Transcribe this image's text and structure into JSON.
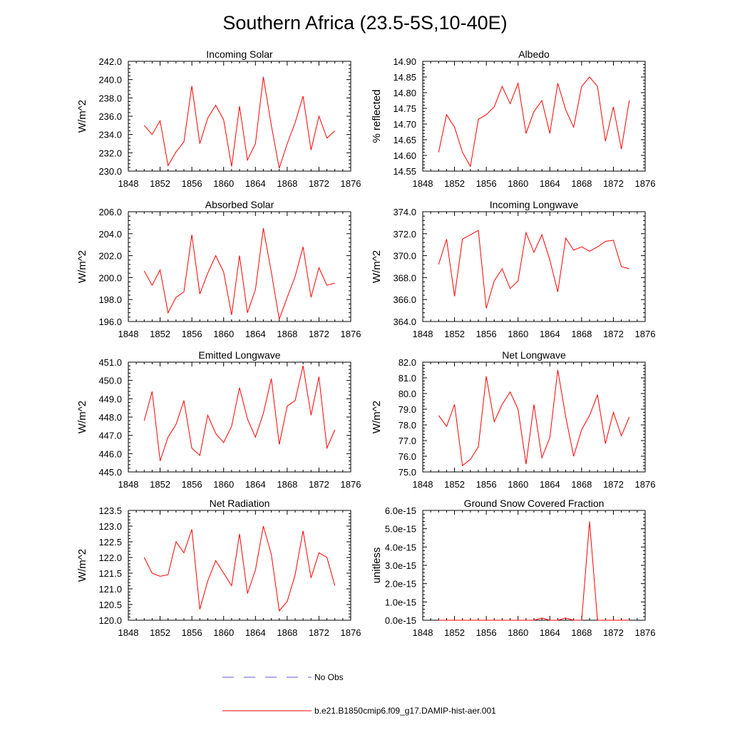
{
  "figure": {
    "title": "Southern Africa (23.5-5S,10-40E)",
    "series_color": "#ff0000",
    "obs_color": "#5b5bd6",
    "legend": {
      "obs_label": "No Obs",
      "model_label": "b.e21.B1850cmip6.f09_g17.DAMIP-hist-aer.001"
    }
  },
  "chart_data": [
    {
      "type": "line",
      "title": "Incoming Solar",
      "ylabel": "W/m^2",
      "xlim": [
        1848,
        1876
      ],
      "ylim": [
        230,
        242
      ],
      "xticks": [
        "1848",
        "1852",
        "1856",
        "1860",
        "1864",
        "1868",
        "1872",
        "1876"
      ],
      "yticks": [
        "230.0",
        "232.0",
        "234.0",
        "236.0",
        "238.0",
        "240.0",
        "242.0"
      ],
      "series": [
        {
          "x": [
            1850,
            1851,
            1852,
            1853,
            1854,
            1855,
            1856,
            1857,
            1858,
            1859,
            1860,
            1861,
            1862,
            1863,
            1864,
            1865,
            1866,
            1867,
            1868,
            1869,
            1870,
            1871,
            1872,
            1873,
            1874
          ],
          "values": [
            235.0,
            234.0,
            235.5,
            230.6,
            232.1,
            233.2,
            239.3,
            233.0,
            235.8,
            237.2,
            235.6,
            230.5,
            237.1,
            231.2,
            233.0,
            240.3,
            235.0,
            230.3,
            233.0,
            235.3,
            238.2,
            232.3,
            236.0,
            233.6,
            234.4
          ]
        }
      ]
    },
    {
      "type": "line",
      "title": "Albedo",
      "ylabel": "% reflected",
      "xlim": [
        1848,
        1876
      ],
      "ylim": [
        14.55,
        14.9
      ],
      "xticks": [
        "1848",
        "1852",
        "1856",
        "1860",
        "1864",
        "1868",
        "1872",
        "1876"
      ],
      "yticks": [
        "14.55",
        "14.60",
        "14.65",
        "14.70",
        "14.75",
        "14.80",
        "14.85",
        "14.90"
      ],
      "series": [
        {
          "x": [
            1850,
            1851,
            1852,
            1853,
            1854,
            1855,
            1856,
            1857,
            1858,
            1859,
            1860,
            1861,
            1862,
            1863,
            1864,
            1865,
            1866,
            1867,
            1868,
            1869,
            1870,
            1871,
            1872,
            1873,
            1874
          ],
          "values": [
            14.61,
            14.73,
            14.69,
            14.61,
            14.565,
            14.715,
            14.73,
            14.755,
            14.82,
            14.765,
            14.83,
            14.67,
            14.74,
            14.775,
            14.67,
            14.83,
            14.745,
            14.69,
            14.82,
            14.85,
            14.82,
            14.645,
            14.755,
            14.62,
            14.775
          ]
        }
      ]
    },
    {
      "type": "line",
      "title": "Absorbed Solar",
      "ylabel": "W/m^2",
      "xlim": [
        1848,
        1876
      ],
      "ylim": [
        196,
        206
      ],
      "xticks": [
        "1848",
        "1852",
        "1856",
        "1860",
        "1864",
        "1868",
        "1872",
        "1876"
      ],
      "yticks": [
        "196.0",
        "198.0",
        "200.0",
        "202.0",
        "204.0",
        "206.0"
      ],
      "series": [
        {
          "x": [
            1850,
            1851,
            1852,
            1853,
            1854,
            1855,
            1856,
            1857,
            1858,
            1859,
            1860,
            1861,
            1862,
            1863,
            1864,
            1865,
            1866,
            1867,
            1868,
            1869,
            1870,
            1871,
            1872,
            1873,
            1874
          ],
          "values": [
            200.6,
            199.3,
            200.7,
            196.8,
            198.2,
            198.7,
            203.9,
            198.5,
            200.4,
            202.0,
            200.5,
            196.6,
            202.0,
            196.8,
            198.9,
            204.5,
            200.5,
            196.2,
            198.2,
            200.1,
            202.8,
            198.2,
            200.9,
            199.3,
            199.5
          ]
        }
      ]
    },
    {
      "type": "line",
      "title": "Incoming Longwave",
      "ylabel": "W/m^2",
      "xlim": [
        1848,
        1876
      ],
      "ylim": [
        364,
        374
      ],
      "xticks": [
        "1848",
        "1852",
        "1856",
        "1860",
        "1864",
        "1868",
        "1872",
        "1876"
      ],
      "yticks": [
        "364.0",
        "366.0",
        "368.0",
        "370.0",
        "372.0",
        "374.0"
      ],
      "series": [
        {
          "x": [
            1850,
            1851,
            1852,
            1853,
            1854,
            1855,
            1856,
            1857,
            1858,
            1859,
            1860,
            1861,
            1862,
            1863,
            1864,
            1865,
            1866,
            1867,
            1868,
            1869,
            1870,
            1871,
            1872,
            1873,
            1874
          ],
          "values": [
            369.2,
            371.5,
            366.3,
            371.5,
            371.9,
            372.3,
            365.2,
            367.7,
            368.8,
            367.0,
            367.7,
            372.1,
            370.3,
            371.9,
            369.6,
            366.7,
            371.6,
            370.5,
            370.8,
            370.4,
            370.8,
            371.3,
            371.4,
            369.0,
            368.8
          ]
        }
      ]
    },
    {
      "type": "line",
      "title": "Emitted Longwave",
      "ylabel": "W/m^2",
      "xlim": [
        1848,
        1876
      ],
      "ylim": [
        445,
        451
      ],
      "xticks": [
        "1848",
        "1852",
        "1856",
        "1860",
        "1864",
        "1868",
        "1872",
        "1876"
      ],
      "yticks": [
        "445.0",
        "446.0",
        "447.0",
        "448.0",
        "449.0",
        "450.0",
        "451.0"
      ],
      "series": [
        {
          "x": [
            1850,
            1851,
            1852,
            1853,
            1854,
            1855,
            1856,
            1857,
            1858,
            1859,
            1860,
            1861,
            1862,
            1863,
            1864,
            1865,
            1866,
            1867,
            1868,
            1869,
            1870,
            1871,
            1872,
            1873,
            1874
          ],
          "values": [
            447.8,
            449.4,
            445.6,
            446.9,
            447.6,
            448.9,
            446.3,
            445.9,
            448.1,
            447.1,
            446.6,
            447.5,
            449.6,
            447.9,
            446.9,
            448.2,
            450.1,
            446.5,
            448.6,
            448.9,
            450.8,
            448.1,
            450.2,
            446.3,
            447.3
          ]
        }
      ]
    },
    {
      "type": "line",
      "title": "Net Longwave",
      "ylabel": "W/m^2",
      "xlim": [
        1848,
        1876
      ],
      "ylim": [
        75,
        82
      ],
      "xticks": [
        "1848",
        "1852",
        "1856",
        "1860",
        "1864",
        "1868",
        "1872",
        "1876"
      ],
      "yticks": [
        "75.0",
        "76.0",
        "77.0",
        "78.0",
        "79.0",
        "80.0",
        "81.0",
        "82.0"
      ],
      "series": [
        {
          "x": [
            1850,
            1851,
            1852,
            1853,
            1854,
            1855,
            1856,
            1857,
            1858,
            1859,
            1860,
            1861,
            1862,
            1863,
            1864,
            1865,
            1866,
            1867,
            1868,
            1869,
            1870,
            1871,
            1872,
            1873,
            1874
          ],
          "values": [
            78.6,
            77.9,
            79.3,
            75.4,
            75.8,
            76.6,
            81.1,
            78.2,
            79.3,
            80.1,
            79.0,
            75.5,
            79.3,
            75.9,
            77.2,
            81.5,
            78.5,
            76.0,
            77.7,
            78.6,
            79.9,
            76.8,
            78.8,
            77.3,
            78.5
          ]
        }
      ]
    },
    {
      "type": "line",
      "title": "Net Radiation",
      "ylabel": "W/m^2",
      "xlim": [
        1848,
        1876
      ],
      "ylim": [
        120,
        123.5
      ],
      "xticks": [
        "1848",
        "1852",
        "1856",
        "1860",
        "1864",
        "1868",
        "1872",
        "1876"
      ],
      "yticks": [
        "120.0",
        "120.5",
        "121.0",
        "121.5",
        "122.0",
        "122.5",
        "123.0",
        "123.5"
      ],
      "series": [
        {
          "x": [
            1850,
            1851,
            1852,
            1853,
            1854,
            1855,
            1856,
            1857,
            1858,
            1859,
            1860,
            1861,
            1862,
            1863,
            1864,
            1865,
            1866,
            1867,
            1868,
            1869,
            1870,
            1871,
            1872,
            1873,
            1874
          ],
          "values": [
            122.0,
            121.5,
            121.4,
            121.45,
            122.5,
            122.15,
            122.9,
            120.35,
            121.25,
            121.9,
            121.5,
            121.1,
            122.75,
            120.85,
            121.6,
            123.0,
            122.1,
            120.3,
            120.6,
            121.45,
            122.85,
            121.35,
            122.15,
            122.0,
            121.1
          ]
        }
      ]
    },
    {
      "type": "line",
      "title": "Ground Snow Covered Fraction",
      "ylabel": "unitless",
      "xlim": [
        1848,
        1876
      ],
      "ylim": [
        0,
        6e-15
      ],
      "xticks": [
        "1848",
        "1852",
        "1856",
        "1860",
        "1864",
        "1868",
        "1872",
        "1876"
      ],
      "yticks": [
        "0.0e-15",
        "1.0e-15",
        "2.0e-15",
        "3.0e-15",
        "4.0e-15",
        "5.0e-15",
        "6.0e-15"
      ],
      "series": [
        {
          "x": [
            1850,
            1851,
            1852,
            1853,
            1854,
            1855,
            1856,
            1857,
            1858,
            1859,
            1860,
            1861,
            1862,
            1863,
            1864,
            1865,
            1866,
            1867,
            1868,
            1869,
            1870,
            1871,
            1872,
            1873,
            1874
          ],
          "values": [
            0,
            0,
            0,
            0,
            0,
            0,
            0,
            0,
            0,
            0,
            0,
            0,
            0,
            1.2e-16,
            0,
            0,
            1.2e-16,
            0,
            0,
            5.4e-15,
            0,
            0,
            0,
            0,
            0
          ]
        }
      ]
    }
  ]
}
